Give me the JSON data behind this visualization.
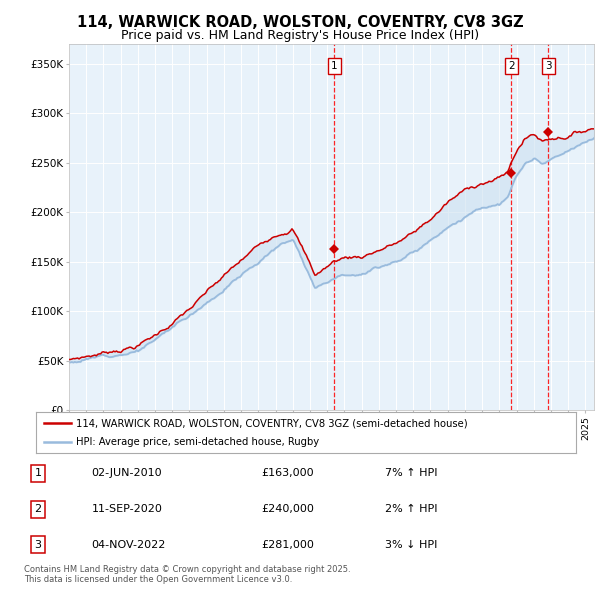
{
  "title": "114, WARWICK ROAD, WOLSTON, COVENTRY, CV8 3GZ",
  "subtitle": "Price paid vs. HM Land Registry's House Price Index (HPI)",
  "legend_line1": "114, WARWICK ROAD, WOLSTON, COVENTRY, CV8 3GZ (semi-detached house)",
  "legend_line2": "HPI: Average price, semi-detached house, Rugby",
  "footer": "Contains HM Land Registry data © Crown copyright and database right 2025.\nThis data is licensed under the Open Government Licence v3.0.",
  "sale_color": "#cc0000",
  "hpi_color": "#99bbdd",
  "hpi_fill": "#cce0f0",
  "plot_bg": "#e8f2fa",
  "ylim": [
    0,
    370000
  ],
  "yticks": [
    0,
    50000,
    100000,
    150000,
    200000,
    250000,
    300000,
    350000
  ],
  "ytick_labels": [
    "£0",
    "£50K",
    "£100K",
    "£150K",
    "£200K",
    "£250K",
    "£300K",
    "£350K"
  ],
  "sale_points": [
    {
      "num": 1,
      "date_x": 2010.42,
      "price": 163000,
      "label": "02-JUN-2010",
      "pct": "7%",
      "dir": "↑"
    },
    {
      "num": 2,
      "date_x": 2020.69,
      "price": 240000,
      "label": "11-SEP-2020",
      "pct": "2%",
      "dir": "↑"
    },
    {
      "num": 3,
      "date_x": 2022.84,
      "price": 281000,
      "label": "04-NOV-2022",
      "pct": "3%",
      "dir": "↓"
    }
  ],
  "xmin": 1995.0,
  "xmax": 2025.5,
  "wp_years": [
    1995.0,
    1997,
    1999,
    2000,
    2002,
    2004,
    2007,
    2008.0,
    2009.3,
    2010.5,
    2011,
    2012,
    2013,
    2014,
    2015,
    2016,
    2017,
    2018,
    2019,
    2020,
    2020.5,
    2021,
    2021.5,
    2022,
    2022.5,
    2023,
    2024,
    2025.5
  ],
  "wp_hpi": [
    48000,
    55000,
    65000,
    75000,
    100000,
    130000,
    172000,
    182000,
    135000,
    148000,
    152000,
    155000,
    162000,
    170000,
    178000,
    192000,
    208000,
    218000,
    228000,
    232000,
    238000,
    258000,
    270000,
    275000,
    268000,
    273000,
    278000,
    290000
  ],
  "wp_prop": [
    50000,
    58000,
    68000,
    78000,
    105000,
    135000,
    178000,
    188000,
    140000,
    155000,
    158000,
    160000,
    168000,
    175000,
    184000,
    198000,
    215000,
    226000,
    236000,
    240000,
    246000,
    268000,
    280000,
    285000,
    278000,
    282000,
    286000,
    295000
  ],
  "hpi_seed": 12,
  "prop_seed": 7,
  "hpi_noise_scale": 500,
  "prop_noise_scale": 700
}
